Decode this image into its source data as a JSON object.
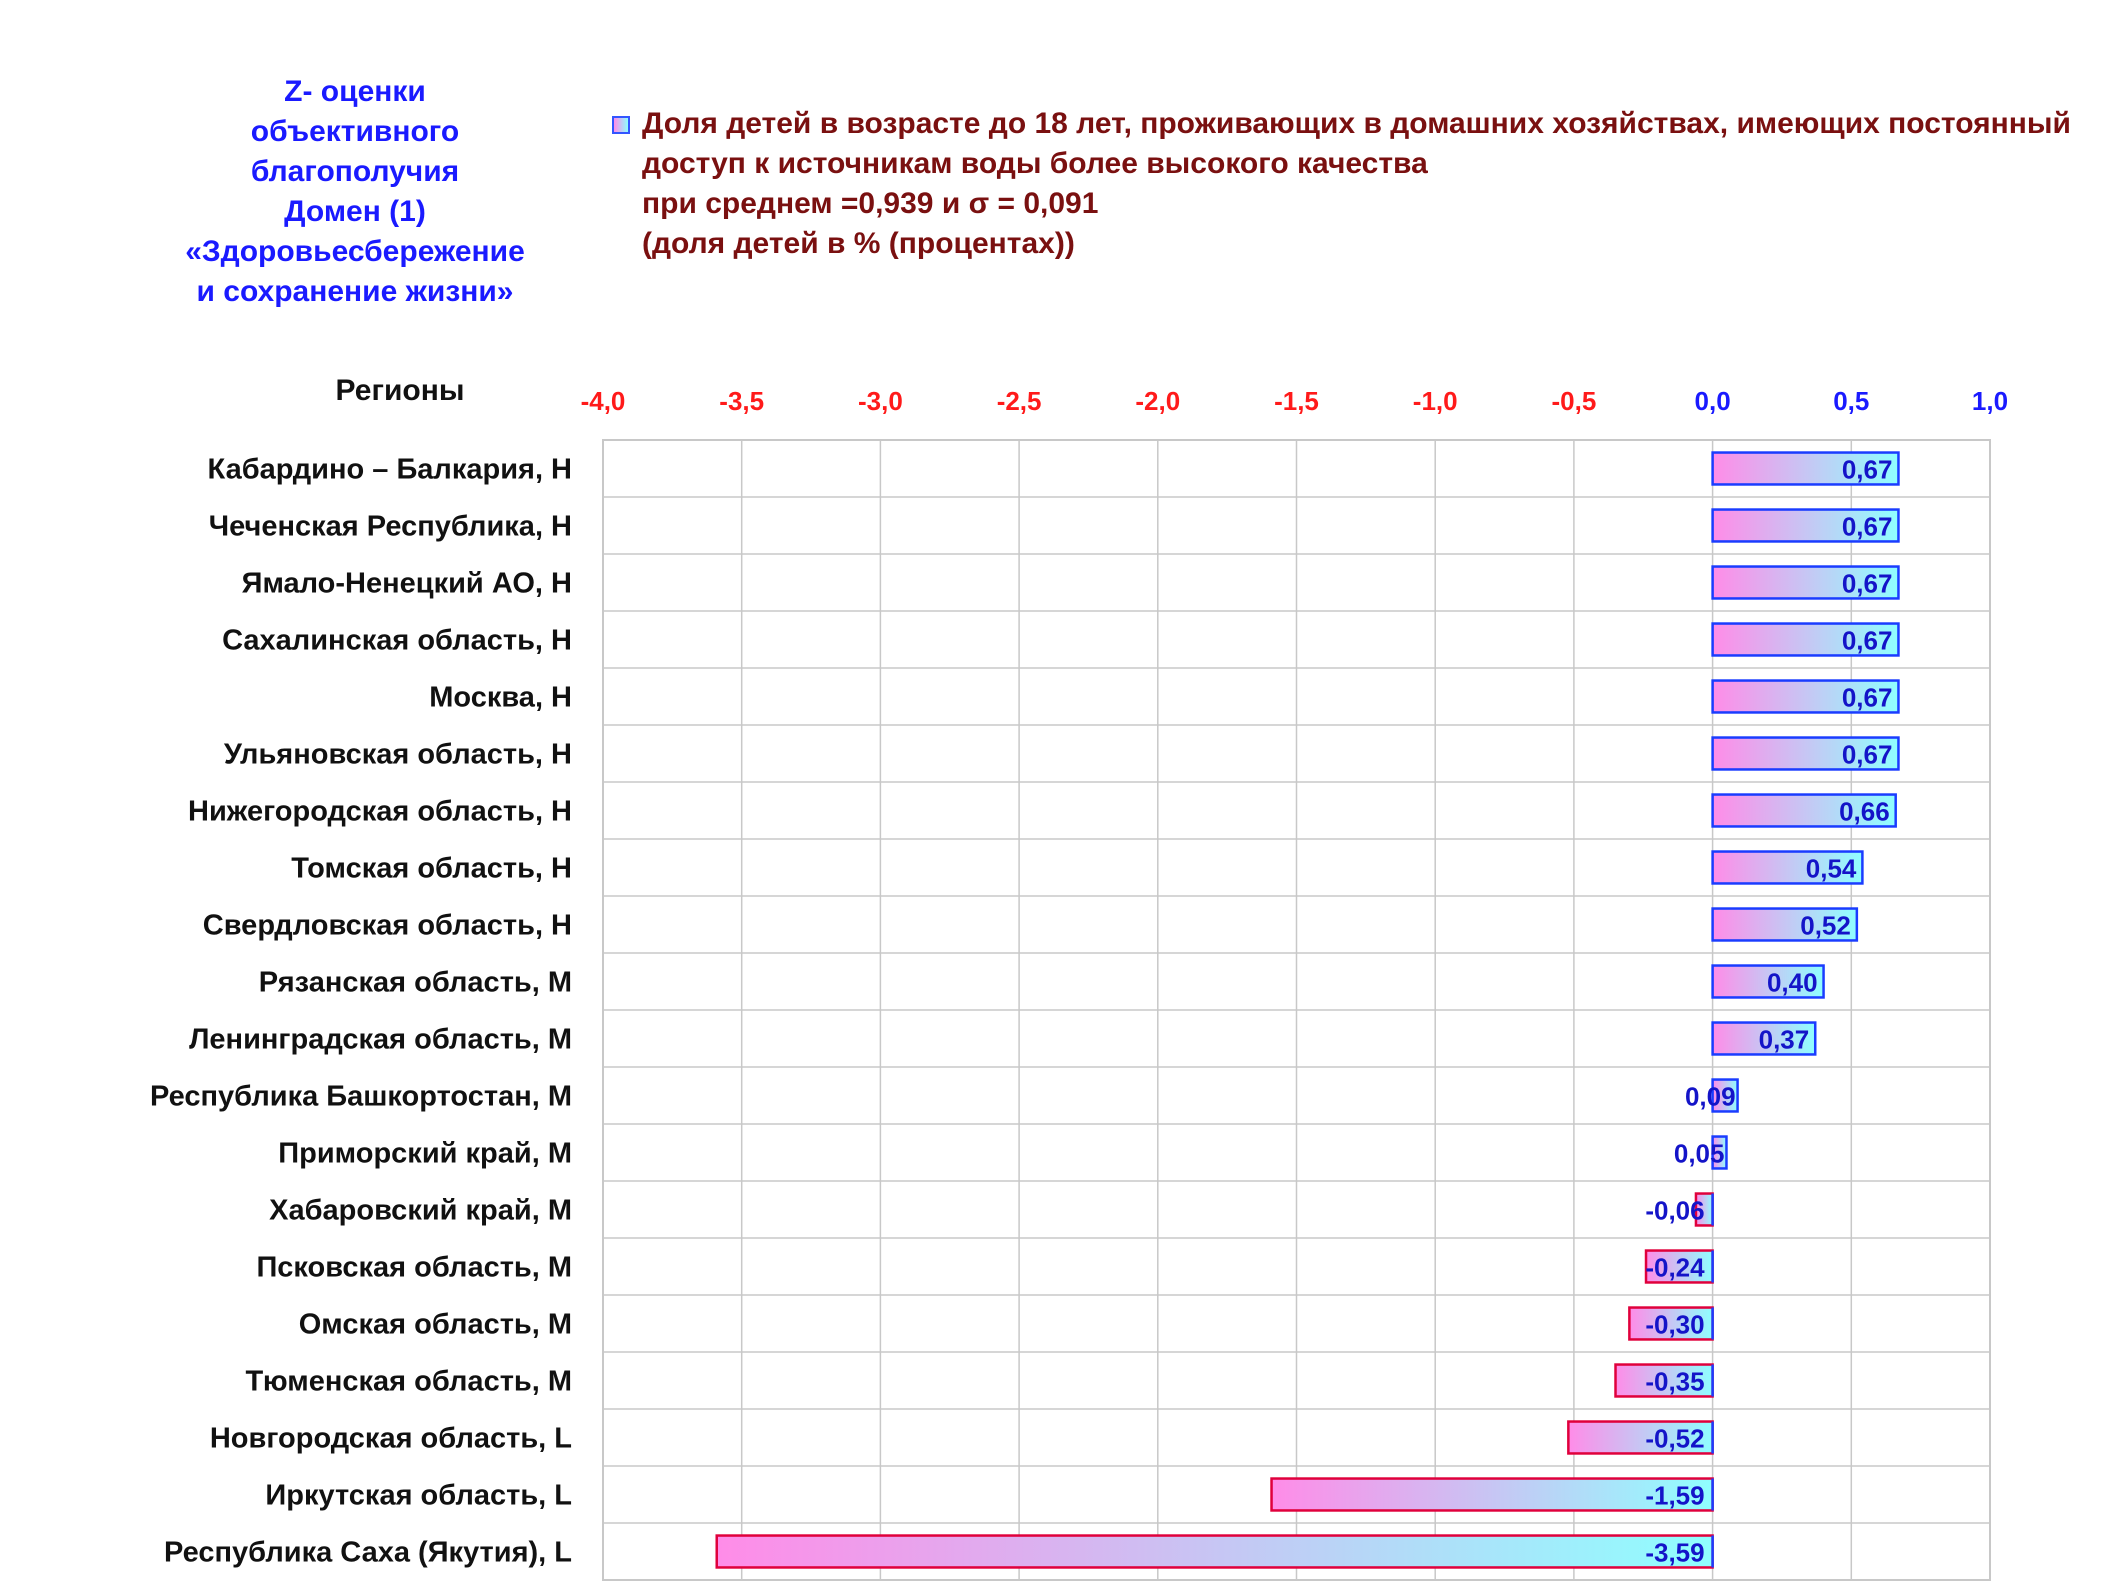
{
  "side_title": {
    "lines": [
      "Z- оценки",
      "объективного",
      "благополучия",
      "Домен (1)",
      "«Здоровьесбережение",
      "и сохранение жизни»"
    ]
  },
  "legend": {
    "lines": [
      "Доля детей в возрасте до 18 лет, проживающих в домашних хозяйствах, имеющих постоянный",
      "доступ к источникам воды более высокого качества",
      "при среднем =0,939  и σ = 0,091",
      "(доля детей в % (процентах))"
    ]
  },
  "colors": {
    "negative_tick": "#ff1a1a",
    "positive_tick": "#1a1aff",
    "bar_left": "#ff8ce8",
    "bar_right": "#8fffff",
    "bar_border_pos": "#1a3cff",
    "bar_border_neg": "#e0003c",
    "grid": "#c8c8c8",
    "value_label": "#1414c8"
  },
  "chart_data": {
    "type": "bar",
    "orientation": "horizontal",
    "y_header": "Регионы",
    "categories": [
      "Кабардино – Балкария,  Н",
      "Чеченская Республика,  Н",
      "Ямало-Ненецкий АО,  Н",
      "Сахалинская область,  Н",
      "Москва,  Н",
      "Ульяновская область,  Н",
      "Нижегородская область,  Н",
      "Томская область,  Н",
      "Свердловская область,  Н",
      "Рязанская область,  М",
      "Ленинградская область,  М",
      "Республика Башкортостан,  М",
      "Приморский край,  М",
      "Хабаровский край,  М",
      "Псковская область,  М",
      "Омская область,  М",
      "Тюменская область,  М",
      "Новгородская область,  L",
      "Иркутская область,  L",
      "Республика Саха (Якутия),  L"
    ],
    "values": [
      0.67,
      0.67,
      0.67,
      0.67,
      0.67,
      0.67,
      0.66,
      0.54,
      0.52,
      0.4,
      0.37,
      0.09,
      0.05,
      -0.06,
      -0.24,
      -0.3,
      -0.35,
      -0.52,
      -1.59,
      -3.59
    ],
    "value_labels": [
      "0,67",
      "0,67",
      "0,67",
      "0,67",
      "0,67",
      "0,67",
      "0,66",
      "0,54",
      "0,52",
      "0,40",
      "0,37",
      "0,09",
      "0,05",
      "-0,06",
      "-0,24",
      "-0,30",
      "-0,35",
      "-0,52",
      "-1,59",
      "-3,59"
    ],
    "xlim": [
      -4.0,
      1.0
    ],
    "x_ticks": [
      -4.0,
      -3.5,
      -3.0,
      -2.5,
      -2.0,
      -1.5,
      -1.0,
      -0.5,
      0.0,
      0.5,
      1.0
    ],
    "x_tick_labels": [
      "-4,0",
      "-3,5",
      "-3,0",
      "-2,5",
      "-2,0",
      "-1,5",
      "-1,0",
      "-0,5",
      "0,0",
      "0,5",
      "1,0"
    ],
    "x_axis_position": "top",
    "grid": true
  }
}
